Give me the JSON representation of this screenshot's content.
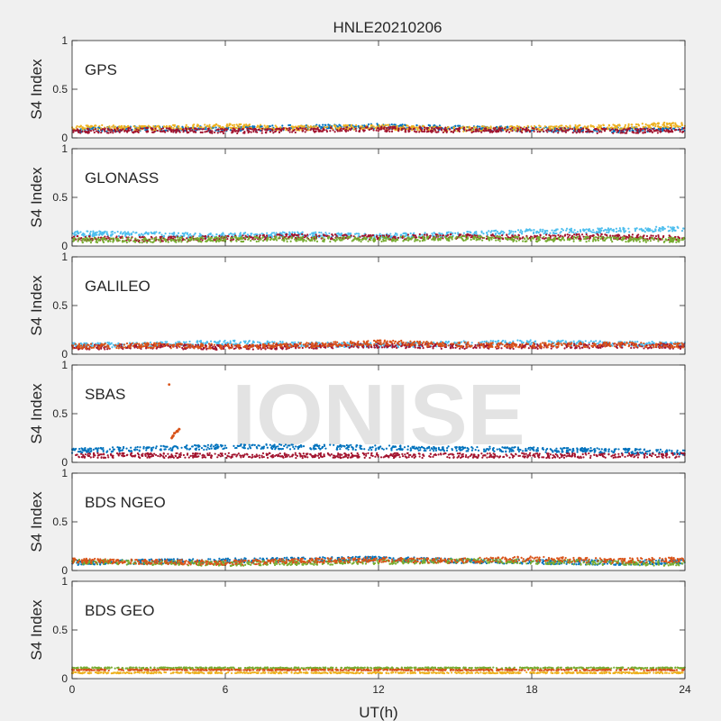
{
  "chart_data": {
    "type": "scatter",
    "title": "HNLE20210206",
    "xlabel": "UT(h)",
    "ylabel": "S4 Index",
    "xlim": [
      0,
      24
    ],
    "ylim": [
      0,
      1
    ],
    "xticks": [
      0,
      6,
      12,
      18,
      24
    ],
    "yticks": [
      0,
      0.5,
      1
    ],
    "x_tick_labels": [
      "0",
      "6",
      "12",
      "18",
      "24"
    ],
    "y_tick_labels": [
      "0",
      "0.5",
      "1"
    ],
    "grid": false,
    "watermark": "IONISE",
    "series_colors": [
      "#0072bd",
      "#d95319",
      "#edb120",
      "#7e2f8e",
      "#77ac30",
      "#4dbeee",
      "#a2142f"
    ],
    "panels": [
      {
        "label": "GPS",
        "satellite_series": [
          {
            "color": "#0072bd",
            "x": [
              0,
              3,
              6,
              9,
              12,
              15,
              18,
              21,
              24
            ],
            "y": [
              0.08,
              0.1,
              0.09,
              0.11,
              0.12,
              0.1,
              0.09,
              0.08,
              0.09
            ]
          },
          {
            "color": "#edb120",
            "x": [
              0,
              3,
              6,
              9,
              12,
              15,
              18,
              21,
              24
            ],
            "y": [
              0.11,
              0.1,
              0.12,
              0.1,
              0.11,
              0.09,
              0.1,
              0.11,
              0.14
            ]
          },
          {
            "color": "#a2142f",
            "x": [
              0,
              3,
              6,
              9,
              12,
              15,
              18,
              21,
              24
            ],
            "y": [
              0.07,
              0.08,
              0.07,
              0.08,
              0.09,
              0.08,
              0.08,
              0.07,
              0.08
            ]
          }
        ]
      },
      {
        "label": "GLONASS",
        "satellite_series": [
          {
            "color": "#4dbeee",
            "x": [
              0,
              3,
              6,
              9,
              12,
              15,
              18,
              21,
              24
            ],
            "y": [
              0.13,
              0.12,
              0.11,
              0.12,
              0.1,
              0.12,
              0.15,
              0.16,
              0.18
            ]
          },
          {
            "color": "#a2142f",
            "x": [
              0,
              3,
              6,
              9,
              12,
              15,
              18,
              21,
              24
            ],
            "y": [
              0.08,
              0.07,
              0.08,
              0.1,
              0.09,
              0.1,
              0.09,
              0.1,
              0.08
            ]
          },
          {
            "color": "#77ac30",
            "x": [
              0,
              3,
              6,
              9,
              12,
              15,
              18,
              21,
              24
            ],
            "y": [
              0.06,
              0.06,
              0.07,
              0.07,
              0.07,
              0.08,
              0.07,
              0.07,
              0.06
            ]
          }
        ]
      },
      {
        "label": "GALILEO",
        "satellite_series": [
          {
            "color": "#4dbeee",
            "x": [
              0,
              3,
              6,
              9,
              12,
              15,
              18,
              21,
              24
            ],
            "y": [
              0.09,
              0.1,
              0.12,
              0.1,
              0.09,
              0.11,
              0.12,
              0.11,
              0.1
            ]
          },
          {
            "color": "#a2142f",
            "x": [
              0,
              3,
              6,
              9,
              12,
              15,
              18,
              21,
              24
            ],
            "y": [
              0.07,
              0.08,
              0.07,
              0.08,
              0.09,
              0.08,
              0.08,
              0.09,
              0.08
            ]
          },
          {
            "color": "#d95319",
            "x": [
              0,
              3,
              6,
              9,
              12,
              15,
              18,
              21,
              24
            ],
            "y": [
              0.08,
              0.09,
              0.08,
              0.09,
              0.12,
              0.1,
              0.09,
              0.1,
              0.09
            ]
          }
        ]
      },
      {
        "label": "SBAS",
        "satellite_series": [
          {
            "color": "#0072bd",
            "x": [
              0,
              3,
              6,
              9,
              12,
              15,
              18,
              21,
              24
            ],
            "y": [
              0.12,
              0.14,
              0.16,
              0.16,
              0.15,
              0.14,
              0.13,
              0.12,
              0.1
            ]
          },
          {
            "color": "#d95319",
            "x": [
              3.8,
              3.9,
              4,
              4.1,
              4.2
            ],
            "y": [
              0.8,
              0.25,
              0.3,
              0.32,
              0.34
            ]
          },
          {
            "color": "#a2142f",
            "x": [
              0,
              3,
              6,
              9,
              12,
              15,
              18,
              21,
              24
            ],
            "y": [
              0.07,
              0.07,
              0.07,
              0.07,
              0.07,
              0.07,
              0.07,
              0.07,
              0.07
            ]
          }
        ]
      },
      {
        "label": "BDS NGEO",
        "satellite_series": [
          {
            "color": "#0072bd",
            "x": [
              0,
              3,
              6,
              9,
              12,
              15,
              18,
              21,
              24
            ],
            "y": [
              0.08,
              0.09,
              0.1,
              0.11,
              0.12,
              0.1,
              0.09,
              0.08,
              0.09
            ]
          },
          {
            "color": "#77ac30",
            "x": [
              0,
              3,
              6,
              9,
              12,
              15,
              18,
              21,
              24
            ],
            "y": [
              0.09,
              0.08,
              0.07,
              0.08,
              0.09,
              0.1,
              0.09,
              0.08,
              0.07
            ]
          },
          {
            "color": "#d95319",
            "x": [
              0,
              3,
              6,
              9,
              12,
              15,
              18,
              21,
              24
            ],
            "y": [
              0.1,
              0.09,
              0.08,
              0.1,
              0.11,
              0.1,
              0.12,
              0.1,
              0.11
            ]
          }
        ]
      },
      {
        "label": "BDS GEO",
        "satellite_series": [
          {
            "color": "#77ac30",
            "x": [
              0,
              6,
              12,
              18,
              24
            ],
            "y": [
              0.11,
              0.11,
              0.11,
              0.11,
              0.11
            ]
          },
          {
            "color": "#d95319",
            "x": [
              0,
              6,
              12,
              18,
              24
            ],
            "y": [
              0.09,
              0.09,
              0.09,
              0.09,
              0.09
            ]
          },
          {
            "color": "#edb120",
            "x": [
              0,
              6,
              12,
              18,
              24
            ],
            "y": [
              0.06,
              0.06,
              0.06,
              0.06,
              0.06
            ]
          }
        ]
      }
    ]
  }
}
